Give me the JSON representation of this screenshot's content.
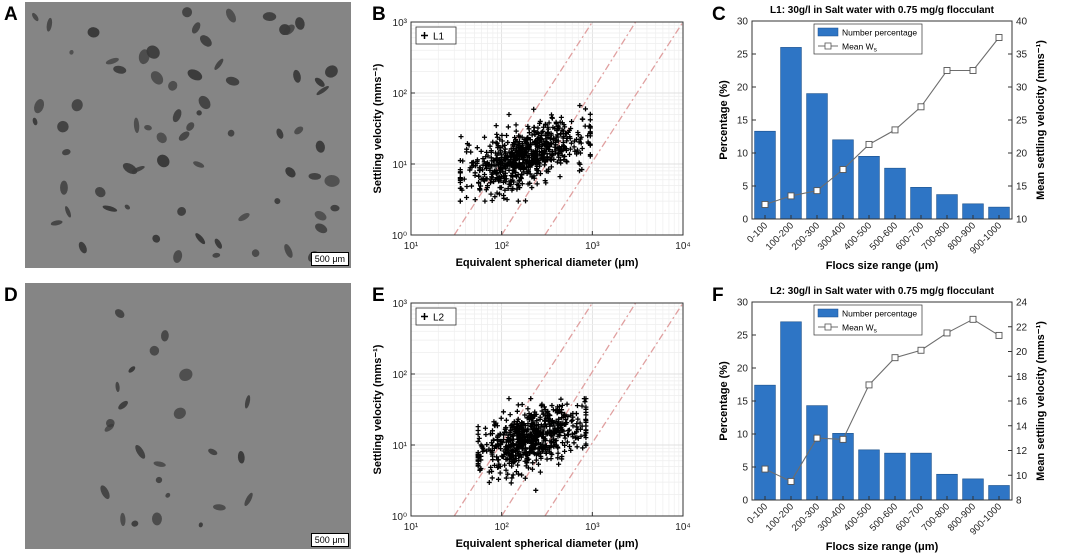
{
  "panels": {
    "A": {
      "letter": "A",
      "scale_label": "500 μm"
    },
    "B": {
      "letter": "B"
    },
    "C": {
      "letter": "C"
    },
    "D": {
      "letter": "D",
      "scale_label": "500 μm"
    },
    "E": {
      "letter": "E"
    },
    "F": {
      "letter": "F"
    }
  },
  "colors": {
    "bar": "#2e75c5",
    "line": "#6d6d6d",
    "guide": "#e0a0a0",
    "photo_bg": "#858585",
    "floc": "#3a3a3a"
  },
  "chart_data": [
    {
      "id": "B",
      "type": "scatter",
      "legend": "L1",
      "xlabel": "Equivalent spherical diameter (μm)",
      "ylabel": "Settling velocity (mms⁻¹)",
      "xscale": "log",
      "yscale": "log",
      "xlim": [
        10,
        10000
      ],
      "ylim": [
        1,
        1000
      ],
      "x_ticks": [
        "10¹",
        "10²",
        "10³",
        "10⁴"
      ],
      "y_ticks": [
        "10⁰",
        "10¹",
        "10²",
        "10³"
      ],
      "cloud": {
        "x_range": [
          35,
          950
        ],
        "y_center_at_100um": 10,
        "y_center_at_800um": 25,
        "y_min": 3,
        "y_max": 70,
        "n": 700,
        "seed": 7
      },
      "guide_lines": [
        {
          "x0": 30,
          "x1": 1000,
          "y0": 1,
          "y1": 1000
        },
        {
          "x0": 100,
          "x1": 3000,
          "y0": 1,
          "y1": 1000
        },
        {
          "x0": 300,
          "x1": 10000,
          "y0": 1,
          "y1": 1000
        }
      ]
    },
    {
      "id": "C",
      "type": "bar",
      "title": "L1: 30g/l in Salt water with 0.75 mg/g flocculant",
      "categories": [
        "0-100",
        "100-200",
        "200-300",
        "300-400",
        "400-500",
        "500-600",
        "600-700",
        "700-800",
        "800-900",
        "900-1000"
      ],
      "series": [
        {
          "name": "Number percentage",
          "axis": "left",
          "values": [
            13.3,
            26,
            19,
            12,
            9.5,
            7.7,
            4.8,
            3.7,
            2.3,
            1.8
          ]
        },
        {
          "name": "Mean W",
          "name_sub": "s",
          "axis": "right",
          "kind": "line",
          "values": [
            12.2,
            13.5,
            14.3,
            17.5,
            21.3,
            23.5,
            27,
            32.5,
            32.5,
            37.5
          ]
        }
      ],
      "xlabel": "Flocs size range (μm)",
      "ylabel": "Percentage (%)",
      "ylabel_right": "Mean settling velocity (mms⁻¹)",
      "ylim": [
        0,
        30
      ],
      "yticks": [
        0,
        5,
        10,
        15,
        20,
        25,
        30
      ],
      "ylim_right": [
        10,
        40
      ],
      "yticks_right": [
        10,
        15,
        20,
        25,
        30,
        35,
        40
      ]
    },
    {
      "id": "E",
      "type": "scatter",
      "legend": "L2",
      "xlabel": "Equivalent spherical diameter (μm)",
      "ylabel": "Settling velocity (mms⁻¹)",
      "xscale": "log",
      "yscale": "log",
      "xlim": [
        10,
        10000
      ],
      "ylim": [
        1,
        1000
      ],
      "x_ticks": [
        "10¹",
        "10²",
        "10³",
        "10⁴"
      ],
      "y_ticks": [
        "10⁰",
        "10¹",
        "10²",
        "10³"
      ],
      "cloud": {
        "x_range": [
          55,
          850
        ],
        "y_center_at_100um": 9,
        "y_center_at_800um": 20,
        "y_min": 2.3,
        "y_max": 45,
        "n": 650,
        "seed": 19
      },
      "guide_lines": [
        {
          "x0": 30,
          "x1": 1000,
          "y0": 1,
          "y1": 1000
        },
        {
          "x0": 100,
          "x1": 3000,
          "y0": 1,
          "y1": 1000
        },
        {
          "x0": 300,
          "x1": 10000,
          "y0": 1,
          "y1": 1000
        }
      ]
    },
    {
      "id": "F",
      "type": "bar",
      "title": "L2: 30g/l in Salt water with 0.75 mg/g flocculant",
      "categories": [
        "0-100",
        "100-200",
        "200-300",
        "300-400",
        "400-500",
        "500-600",
        "600-700",
        "700-800",
        "800-900",
        "900-1000"
      ],
      "series": [
        {
          "name": "Number percentage",
          "axis": "left",
          "values": [
            17.4,
            27,
            14.3,
            10.1,
            7.6,
            7.1,
            7.1,
            3.9,
            3.2,
            2.2
          ]
        },
        {
          "name": "Mean W",
          "name_sub": "s",
          "axis": "right",
          "kind": "line",
          "values": [
            10.5,
            9.5,
            13,
            12.9,
            17.3,
            19.5,
            20.1,
            21.5,
            22.6,
            21.3
          ]
        }
      ],
      "xlabel": "Flocs size range (μm)",
      "ylabel": "Percentage (%)",
      "ylabel_right": "Mean settling velocity (mms⁻¹)",
      "ylim": [
        0,
        30
      ],
      "yticks": [
        0,
        5,
        10,
        15,
        20,
        25,
        30
      ],
      "ylim_right": [
        8,
        24
      ],
      "yticks_right": [
        8,
        10,
        12,
        14,
        16,
        18,
        20,
        22,
        24
      ]
    }
  ]
}
